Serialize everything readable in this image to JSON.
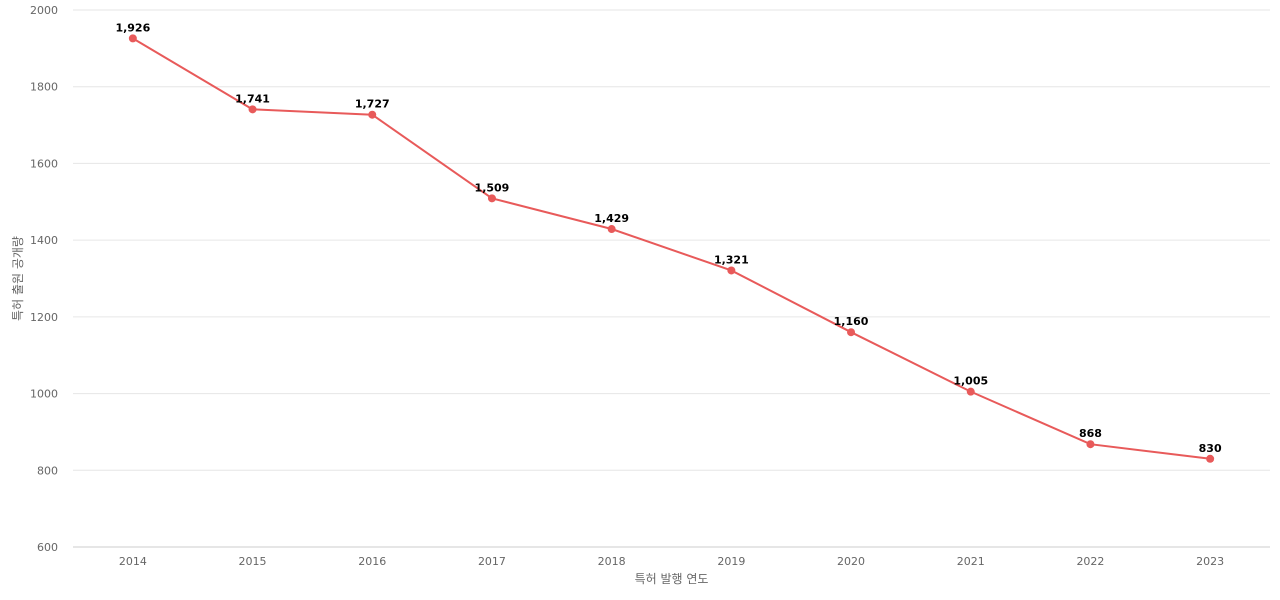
{
  "chart_data": {
    "type": "line",
    "title": "",
    "xlabel": "특허 발행 연도",
    "ylabel": "특허 출원 공개량",
    "ylim": [
      600,
      2000
    ],
    "yticks": [
      600,
      800,
      1000,
      1200,
      1400,
      1600,
      1800,
      2000
    ],
    "grid": true,
    "categories": [
      "2014",
      "2015",
      "2016",
      "2017",
      "2018",
      "2019",
      "2020",
      "2021",
      "2022",
      "2023"
    ],
    "series": [
      {
        "values": [
          1926,
          1741,
          1727,
          1509,
          1429,
          1321,
          1160,
          1005,
          868,
          830
        ],
        "labels": [
          "1,926",
          "1,741",
          "1,727",
          "1,509",
          "1,429",
          "1,321",
          "1,160",
          "1,005",
          "868",
          "830"
        ],
        "color": "#e85a5a"
      }
    ]
  }
}
